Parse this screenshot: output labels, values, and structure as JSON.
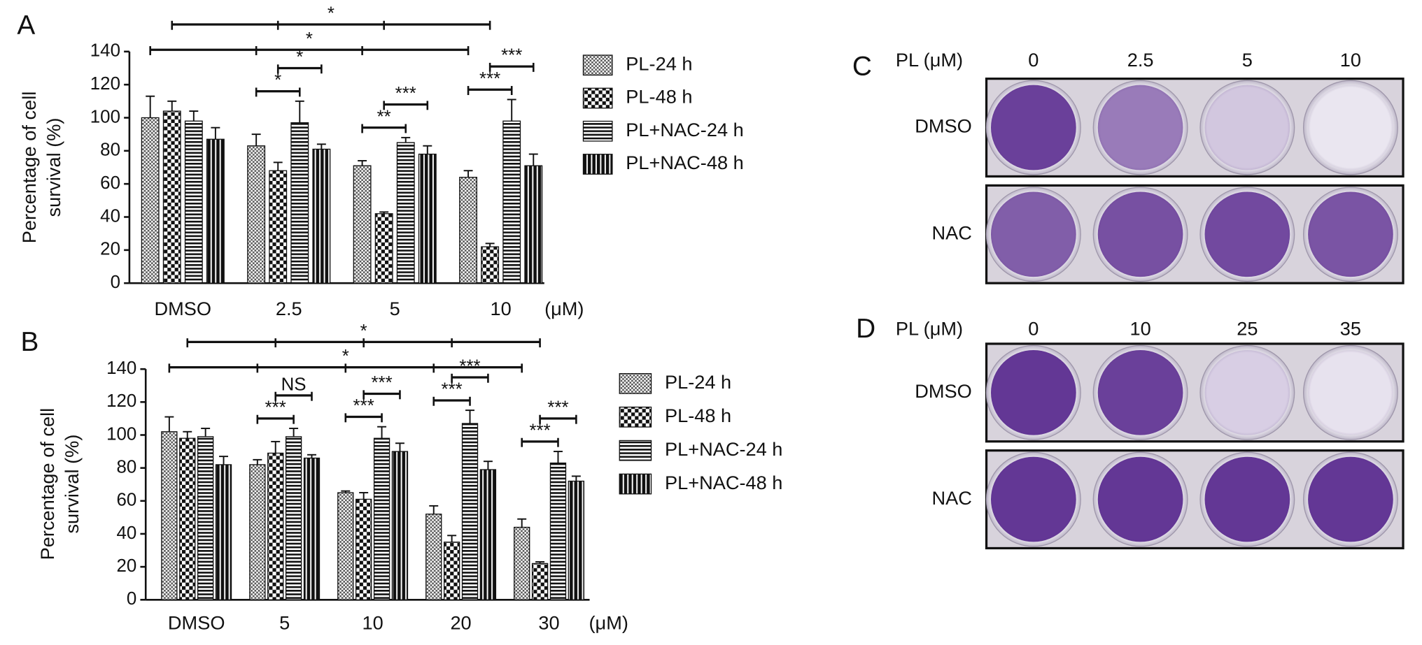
{
  "chart_data": [
    {
      "type": "bar",
      "panel": "A",
      "ylabel": [
        "Percentage of cell",
        "survival (%)"
      ],
      "x_unit": "(μM)",
      "categories": [
        "DMSO",
        "2.5",
        "5",
        "10"
      ],
      "ylim": [
        0,
        140
      ],
      "yticks": [
        0,
        20,
        40,
        60,
        80,
        100,
        120,
        140
      ],
      "series": [
        {
          "name": "PL-24 h",
          "pattern": "fine-check",
          "values": [
            100,
            83,
            71,
            64
          ],
          "errors": [
            13,
            7,
            3,
            4
          ]
        },
        {
          "name": "PL-48 h",
          "pattern": "check",
          "values": [
            104,
            68,
            42,
            22
          ],
          "errors": [
            6,
            5,
            1,
            2
          ]
        },
        {
          "name": "PL+NAC-24 h",
          "pattern": "horizontal",
          "values": [
            98,
            97,
            85,
            98
          ],
          "errors": [
            6,
            13,
            3,
            13
          ]
        },
        {
          "name": "PL+NAC-48 h",
          "pattern": "vertical",
          "values": [
            87,
            81,
            78,
            71
          ],
          "errors": [
            7,
            3,
            5,
            7
          ]
        }
      ],
      "significance": [
        {
          "label": "*",
          "bars": [
            [
              0,
              0
            ],
            [
              1,
              0
            ],
            [
              2,
              0
            ],
            [
              3,
              0
            ]
          ]
        },
        {
          "label": "*",
          "bars": [
            [
              0,
              1
            ],
            [
              1,
              1
            ],
            [
              2,
              1
            ],
            [
              3,
              1
            ]
          ]
        },
        {
          "label": "*",
          "bars": [
            [
              1,
              0
            ],
            [
              1,
              2
            ]
          ]
        },
        {
          "label": "*",
          "bars": [
            [
              1,
              1
            ],
            [
              1,
              3
            ]
          ]
        },
        {
          "label": "**",
          "bars": [
            [
              2,
              0
            ],
            [
              2,
              2
            ]
          ]
        },
        {
          "label": "***",
          "bars": [
            [
              2,
              1
            ],
            [
              2,
              3
            ]
          ]
        },
        {
          "label": "***",
          "bars": [
            [
              3,
              0
            ],
            [
              3,
              2
            ]
          ]
        },
        {
          "label": "***",
          "bars": [
            [
              3,
              1
            ],
            [
              3,
              3
            ]
          ]
        }
      ]
    },
    {
      "type": "bar",
      "panel": "B",
      "ylabel": [
        "Percentage of cell",
        "survival (%)"
      ],
      "x_unit": "(μM)",
      "categories": [
        "DMSO",
        "5",
        "10",
        "20",
        "30"
      ],
      "ylim": [
        0,
        140
      ],
      "yticks": [
        0,
        20,
        40,
        60,
        80,
        100,
        120,
        140
      ],
      "series": [
        {
          "name": "PL-24 h",
          "pattern": "fine-check",
          "values": [
            102,
            82,
            65,
            52,
            44
          ],
          "errors": [
            9,
            3,
            1,
            5,
            5
          ]
        },
        {
          "name": "PL-48 h",
          "pattern": "check",
          "values": [
            98,
            89,
            61,
            35,
            22
          ],
          "errors": [
            4,
            7,
            4,
            4,
            1
          ]
        },
        {
          "name": "PL+NAC-24 h",
          "pattern": "horizontal",
          "values": [
            99,
            99,
            98,
            107,
            83
          ],
          "errors": [
            5,
            5,
            7,
            8,
            7
          ]
        },
        {
          "name": "PL+NAC-48 h",
          "pattern": "vertical",
          "values": [
            82,
            86,
            90,
            79,
            72
          ],
          "errors": [
            5,
            2,
            5,
            5,
            3
          ]
        }
      ],
      "significance": [
        {
          "label": "*",
          "bars": [
            [
              0,
              0
            ],
            [
              1,
              0
            ],
            [
              2,
              0
            ],
            [
              3,
              0
            ],
            [
              4,
              0
            ]
          ]
        },
        {
          "label": "*",
          "bars": [
            [
              0,
              1
            ],
            [
              1,
              1
            ],
            [
              2,
              1
            ],
            [
              3,
              1
            ],
            [
              4,
              1
            ]
          ]
        },
        {
          "label": "***",
          "bars": [
            [
              1,
              0
            ],
            [
              1,
              2
            ]
          ]
        },
        {
          "label": "NS",
          "bars": [
            [
              1,
              1
            ],
            [
              1,
              3
            ]
          ]
        },
        {
          "label": "***",
          "bars": [
            [
              2,
              0
            ],
            [
              2,
              2
            ]
          ]
        },
        {
          "label": "***",
          "bars": [
            [
              2,
              1
            ],
            [
              2,
              3
            ]
          ]
        },
        {
          "label": "***",
          "bars": [
            [
              3,
              0
            ],
            [
              3,
              2
            ]
          ]
        },
        {
          "label": "***",
          "bars": [
            [
              3,
              1
            ],
            [
              3,
              3
            ]
          ]
        },
        {
          "label": "***",
          "bars": [
            [
              4,
              0
            ],
            [
              4,
              2
            ]
          ]
        },
        {
          "label": "***",
          "bars": [
            [
              4,
              1
            ],
            [
              4,
              3
            ]
          ]
        }
      ]
    }
  ],
  "plates": [
    {
      "panel": "C",
      "header": "PL (μM)",
      "columns": [
        "0",
        "2.5",
        "5",
        "10"
      ],
      "rows": [
        "DMSO",
        "NAC"
      ]
    },
    {
      "panel": "D",
      "header": "PL (μM)",
      "columns": [
        "0",
        "10",
        "25",
        "35"
      ],
      "rows": [
        "DMSO",
        "NAC"
      ]
    }
  ]
}
